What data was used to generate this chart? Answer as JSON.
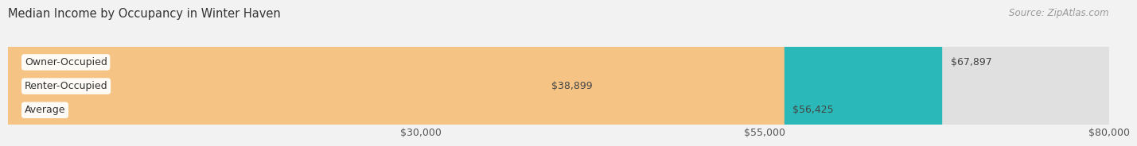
{
  "title": "Median Income by Occupancy in Winter Haven",
  "source": "Source: ZipAtlas.com",
  "categories": [
    "Owner-Occupied",
    "Renter-Occupied",
    "Average"
  ],
  "values": [
    67897,
    38899,
    56425
  ],
  "bar_colors": [
    "#2ab8b8",
    "#c4a8d4",
    "#f5c485"
  ],
  "value_labels": [
    "$67,897",
    "$38,899",
    "$56,425"
  ],
  "xlim": [
    0,
    80000
  ],
  "xticks": [
    30000,
    55000,
    80000
  ],
  "xtick_labels": [
    "$30,000",
    "$55,000",
    "$80,000"
  ],
  "background_color": "#f2f2f2",
  "bar_bg_color": "#e0e0e0",
  "title_fontsize": 10.5,
  "source_fontsize": 8.5,
  "label_fontsize": 9,
  "value_fontsize": 9,
  "tick_fontsize": 9,
  "bar_height": 0.52
}
